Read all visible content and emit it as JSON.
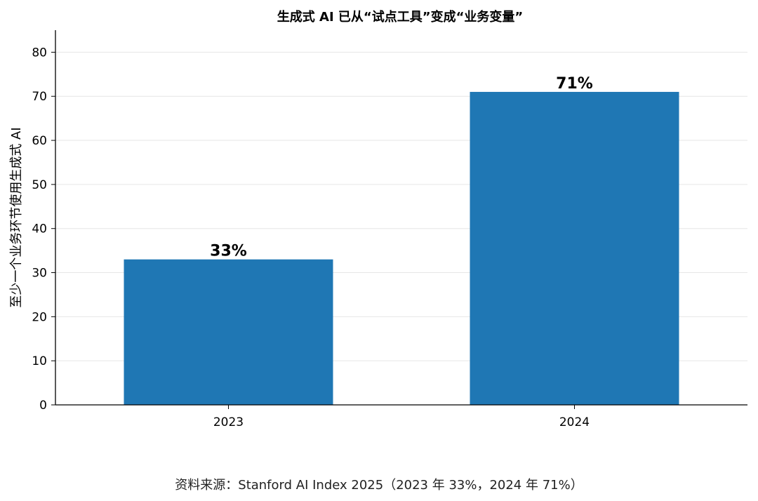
{
  "chart_data": {
    "type": "bar",
    "title": "生成式 AI 已从“试点工具”变成“业务变量”",
    "xlabel": "",
    "ylabel": "至少一个业务环节使用生成式 AI",
    "categories": [
      "2023",
      "2024"
    ],
    "values": [
      33,
      71
    ],
    "data_labels": [
      "33%",
      "71%"
    ],
    "ylim": [
      0,
      85
    ],
    "yticks": [
      0,
      10,
      20,
      30,
      40,
      50,
      60,
      70,
      80
    ],
    "grid": "horizontal",
    "bar_color": "#1f77b4"
  },
  "source_note": "资料来源：Stanford AI Index 2025（2023 年 33%，2024 年 71%）"
}
